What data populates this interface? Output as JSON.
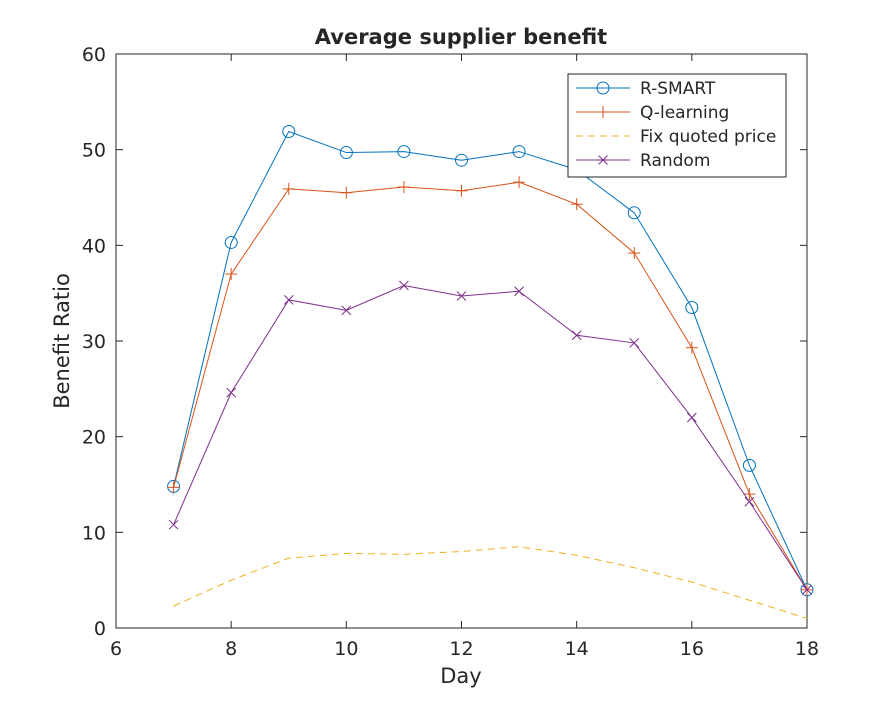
{
  "chart_data": {
    "type": "line",
    "title": "Average supplier benefit",
    "xlabel": "Day",
    "ylabel": "Benefit Ratio",
    "xlim": [
      6,
      18
    ],
    "ylim": [
      0,
      60
    ],
    "xticks": [
      6,
      8,
      10,
      12,
      14,
      16,
      18
    ],
    "yticks": [
      0,
      10,
      20,
      30,
      40,
      50,
      60
    ],
    "x": [
      7,
      8,
      9,
      10,
      11,
      12,
      13,
      14,
      15,
      16,
      17,
      18
    ],
    "legend_position": "top-right",
    "grid": false,
    "series": [
      {
        "name": "R-SMART",
        "color": "#0072BD",
        "marker": "circle",
        "line": "solid",
        "values": [
          14.8,
          40.3,
          51.9,
          49.7,
          49.8,
          48.9,
          49.8,
          47.9,
          43.4,
          33.5,
          17.0,
          4.0
        ]
      },
      {
        "name": "Q-learning",
        "color": "#D95319",
        "marker": "plus",
        "line": "solid",
        "values": [
          14.7,
          37.0,
          45.9,
          45.5,
          46.1,
          45.7,
          46.6,
          44.3,
          39.2,
          29.3,
          14.0,
          4.0
        ]
      },
      {
        "name": "Fix quoted price",
        "color": "#EDB120",
        "marker": "none",
        "line": "dashed",
        "values": [
          2.3,
          5.0,
          7.3,
          7.8,
          7.7,
          8.0,
          8.5,
          7.6,
          6.3,
          4.8,
          2.9,
          1.0
        ]
      },
      {
        "name": "Random",
        "color": "#7E2F8E",
        "marker": "x",
        "line": "solid",
        "values": [
          10.8,
          24.6,
          34.3,
          33.2,
          35.8,
          34.7,
          35.2,
          30.6,
          29.8,
          22.0,
          13.2,
          4.0
        ]
      }
    ]
  }
}
